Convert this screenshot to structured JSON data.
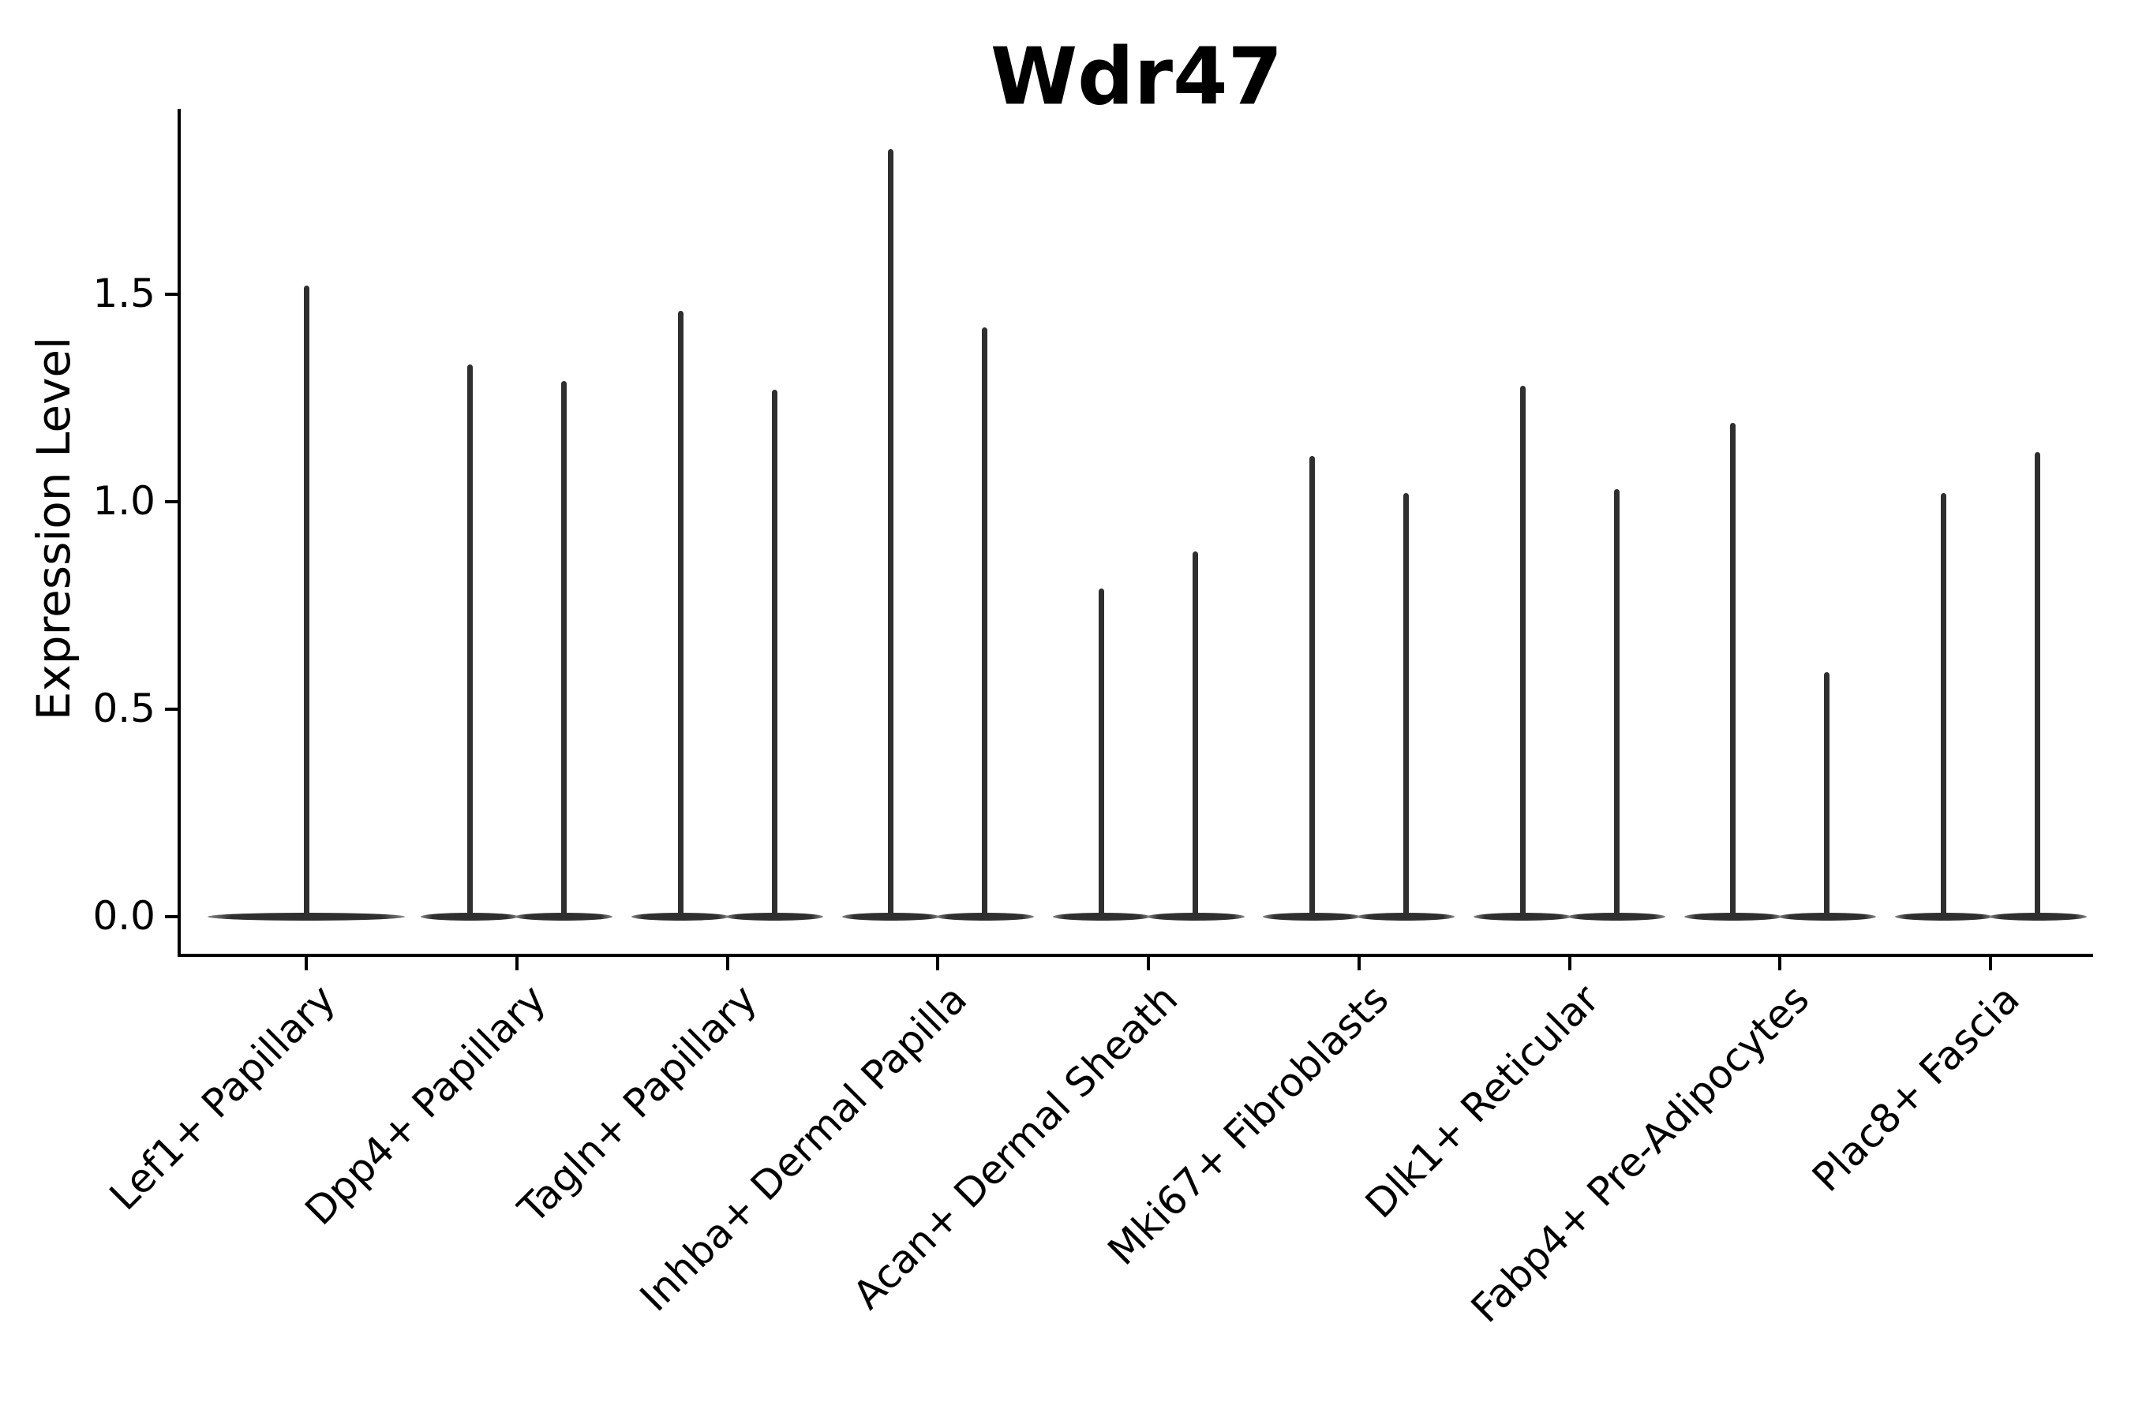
{
  "chart_data": {
    "type": "violin",
    "title": "Wdr47",
    "ylabel": "Expression Level",
    "xlabel": "",
    "grid": false,
    "legend": null,
    "background_color": "#ffffff",
    "violin_color": "#2f2f2f",
    "violin_tip_color": "#8a8a8a",
    "axis_color": "#000000",
    "ylim": [
      -0.09,
      1.95
    ],
    "ytick_labels": [
      "0.0",
      "0.5",
      "1.0",
      "1.5"
    ],
    "ytick_values": [
      0.0,
      0.5,
      1.0,
      1.5
    ],
    "baseline_value": 0.0,
    "description": "Violin plot of Wdr47 expression per fibroblast subtype; density mass concentrated at 0 (flat horizontal lens) with a thin spike up to the maximum expression value. First category shows one violin; all others show two side-by-side violins.",
    "categories": [
      "Lef1+ Papillary",
      "Dpp4+ Papillary",
      "Tagln+ Papillary",
      "Inhba+ Dermal Papilla",
      "Acan+ Dermal Sheath",
      "Mki67+ Fibroblasts",
      "Dlk1+ Reticular",
      "Fabp4+ Pre-Adipocytes",
      "Plac8+ Fascia"
    ],
    "violins": [
      {
        "category": "Lef1+ Papillary",
        "maxima": [
          1.52
        ]
      },
      {
        "category": "Dpp4+ Papillary",
        "maxima": [
          1.33,
          1.29
        ]
      },
      {
        "category": "Tagln+ Papillary",
        "maxima": [
          1.46,
          1.27
        ]
      },
      {
        "category": "Inhba+ Dermal Papilla",
        "maxima": [
          1.85,
          1.42
        ]
      },
      {
        "category": "Acan+ Dermal Sheath",
        "maxima": [
          0.79,
          0.88
        ]
      },
      {
        "category": "Mki67+ Fibroblasts",
        "maxima": [
          1.11,
          1.02
        ]
      },
      {
        "category": "Dlk1+ Reticular",
        "maxima": [
          1.28,
          1.03
        ]
      },
      {
        "category": "Fabp4+ Pre-Adipocytes",
        "maxima": [
          1.19,
          0.59
        ]
      },
      {
        "category": "Plac8+ Fascia",
        "maxima": [
          1.02,
          1.12
        ]
      }
    ]
  }
}
